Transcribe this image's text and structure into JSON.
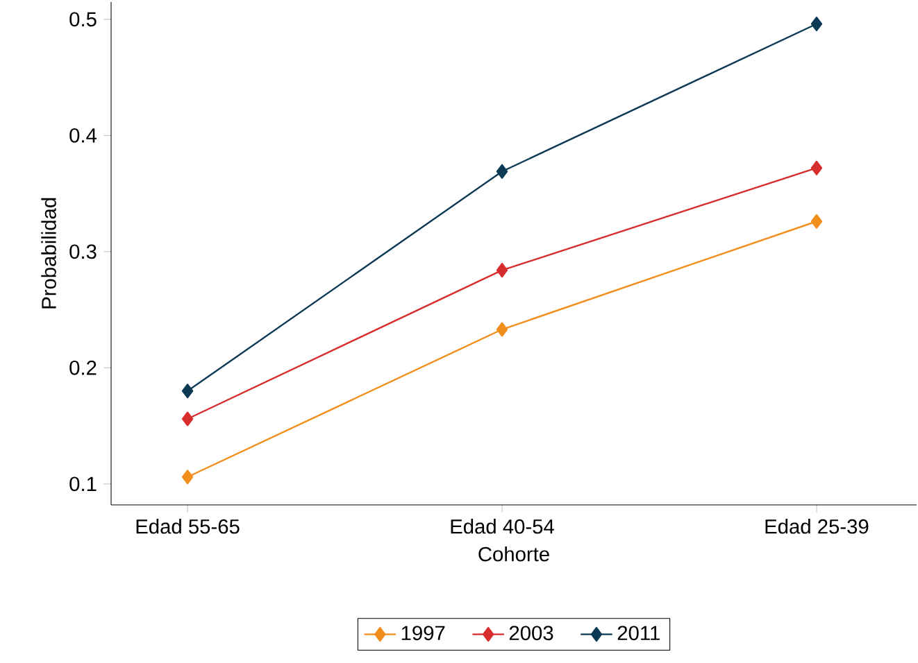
{
  "chart_data": {
    "type": "line",
    "xlabel": "Cohorte",
    "ylabel": "Probabilidad",
    "categories": [
      "Edad 55-65",
      "Edad 40-54",
      "Edad 25-39"
    ],
    "series": [
      {
        "name": "1997",
        "color": "#f28e1c",
        "values": [
          0.106,
          0.233,
          0.326
        ]
      },
      {
        "name": "2003",
        "color": "#d62d2d",
        "values": [
          0.156,
          0.284,
          0.372
        ]
      },
      {
        "name": "2011",
        "color": "#0c3a55",
        "values": [
          0.18,
          0.369,
          0.496
        ]
      }
    ],
    "ylim": [
      0.082,
      0.515
    ],
    "yticks": [
      0.1,
      0.2,
      0.3,
      0.4,
      0.5
    ],
    "grid": false,
    "legend": "bottom",
    "marker": "diamond",
    "line_style": "solid"
  }
}
